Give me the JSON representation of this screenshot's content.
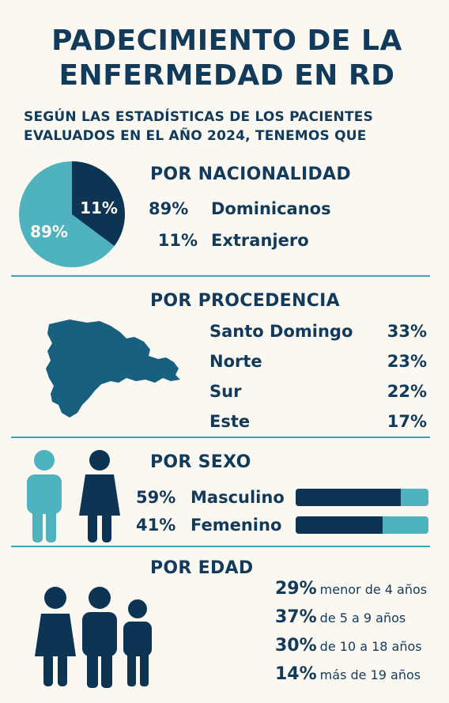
{
  "title": {
    "line1": "PADECIMIENTO DE LA",
    "line2": "ENFERMEDAD EN RD"
  },
  "subtitle": {
    "line1": "SEGÚN LAS ESTADÍSTICAS DE LOS PACIENTES",
    "line2": "EVALUADOS EN EL AÑO 2024, TENEMOS QUE"
  },
  "colors": {
    "dark": "#123a5a",
    "teal": "#4fb3bf",
    "bg": "#fbf8f2"
  },
  "nacionalidad": {
    "heading": "POR NACIONALIDAD",
    "pie_label_large": "89%",
    "pie_label_small": "11%",
    "items": [
      {
        "pct": "89%",
        "label": "Dominicanos",
        "value": 89
      },
      {
        "pct": "11%",
        "label": "Extranjero",
        "value": 11
      }
    ]
  },
  "procedencia": {
    "heading": "POR PROCEDENCIA",
    "map_icon": "dominican-republic-map-icon",
    "items": [
      {
        "label": "Santo Domingo",
        "pct": "33%"
      },
      {
        "label": "Norte",
        "pct": "23%"
      },
      {
        "label": "Sur",
        "pct": "22%"
      },
      {
        "label": "Este",
        "pct": "17%"
      }
    ]
  },
  "sexo": {
    "heading": "POR SEXO",
    "icons": [
      "male-person-icon",
      "female-person-icon"
    ],
    "items": [
      {
        "pct": "59%",
        "label": "Masculino",
        "value": 0.59
      },
      {
        "pct": "41%",
        "label": "Femenino",
        "value": 0.41
      }
    ]
  },
  "edad": {
    "heading": "POR EDAD",
    "icon": "family-group-icon",
    "items": [
      {
        "pct": "29%",
        "label": "menor de 4 años"
      },
      {
        "pct": "37%",
        "label": "de 5 a 9 años"
      },
      {
        "pct": "30%",
        "label": "de 10 a 18 años"
      },
      {
        "pct": "14%",
        "label": "más de 19 años"
      }
    ]
  }
}
